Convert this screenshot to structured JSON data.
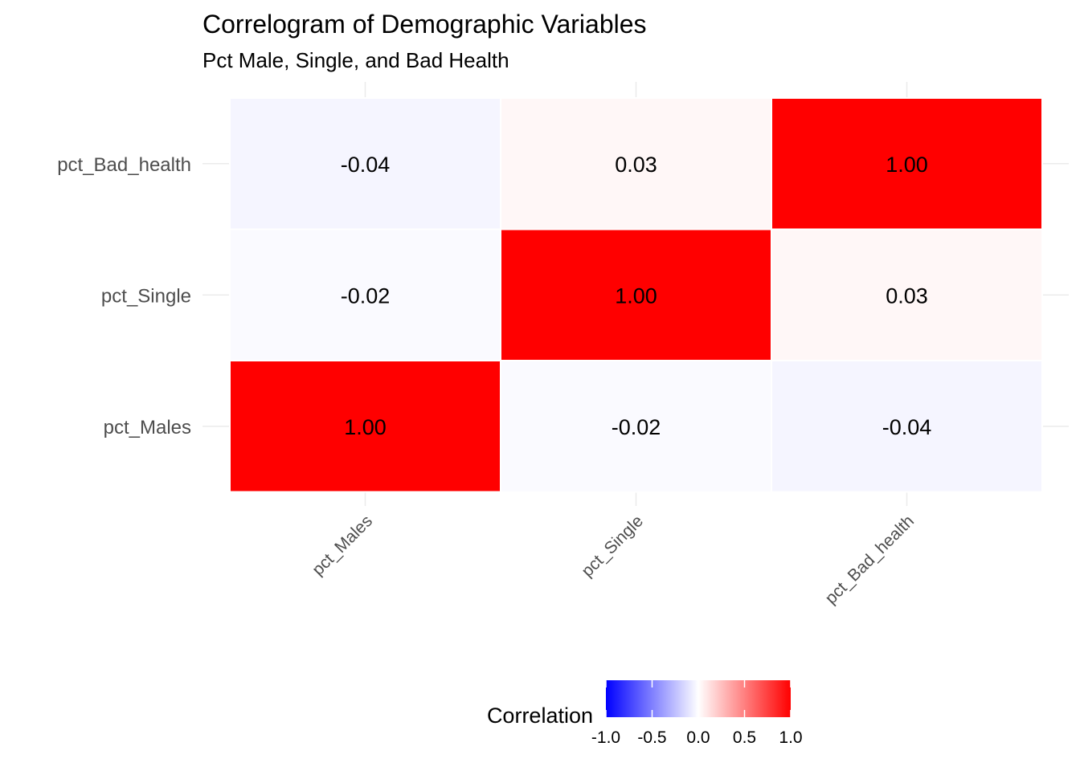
{
  "chart_data": {
    "type": "heatmap",
    "title": "Correlogram of Demographic Variables",
    "subtitle": "Pct Male, Single, and Bad Health",
    "x_categories": [
      "pct_Males",
      "pct_Single",
      "pct_Bad_health"
    ],
    "y_categories": [
      "pct_Males",
      "pct_Single",
      "pct_Bad_health"
    ],
    "values": [
      [
        1.0,
        -0.02,
        -0.04
      ],
      [
        -0.02,
        1.0,
        0.03
      ],
      [
        -0.04,
        0.03,
        1.0
      ]
    ],
    "labels": [
      [
        "1.00",
        "-0.02",
        "-0.04"
      ],
      [
        "-0.02",
        "1.00",
        "0.03"
      ],
      [
        "-0.04",
        "0.03",
        "1.00"
      ]
    ],
    "legend": {
      "title": "Correlation",
      "range": [
        -1,
        1
      ],
      "ticks": [
        -1.0,
        -0.5,
        0.0,
        0.5,
        1.0
      ],
      "tick_labels": [
        "-1.0",
        "-0.5",
        "0.0",
        "0.5",
        "1.0"
      ],
      "colors": {
        "low": "#0000ff",
        "mid": "#ffffff",
        "high": "#ff0000"
      },
      "position": "bottom"
    },
    "grid": true
  }
}
